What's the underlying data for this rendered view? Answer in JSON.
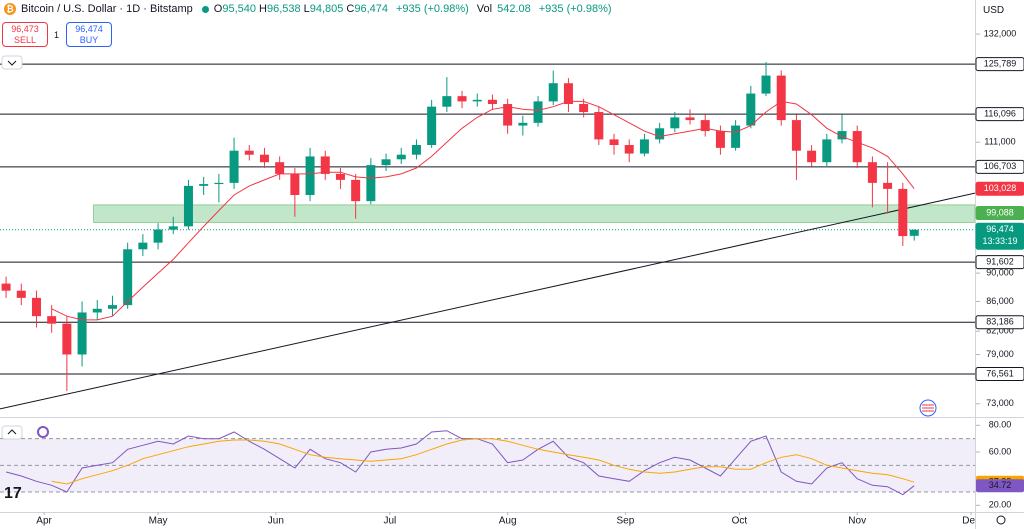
{
  "header": {
    "title": "Bitcoin / U.S. Dollar · 1D · Bitstamp",
    "ohlc": [
      {
        "key": "O",
        "value": "95,540"
      },
      {
        "key": "H",
        "value": "96,538"
      },
      {
        "key": "L",
        "value": "94,805"
      },
      {
        "key": "C",
        "value": "96,474"
      }
    ],
    "change": "+935 (+0.98%)",
    "vol_key": "Vol",
    "volume": "542.08",
    "vol_change": "+935 (+0.98%)"
  },
  "trade": {
    "sell_price": "96,473",
    "sell": "SELL",
    "spread": "1",
    "buy_price": "96,474",
    "buy": "BUY"
  },
  "currency": "USD",
  "chart_data": {
    "type": "candlestick",
    "log": true,
    "xlim": [
      -11.6,
      245
    ],
    "ylim": [
      71700,
      139400
    ],
    "xticks": [
      {
        "value": 0,
        "label": "Apr"
      },
      {
        "value": 30,
        "label": "May"
      },
      {
        "value": 61,
        "label": "Jun"
      },
      {
        "value": 91,
        "label": "Jul"
      },
      {
        "value": 122,
        "label": "Aug"
      },
      {
        "value": 153,
        "label": "Sep"
      },
      {
        "value": 183,
        "label": "Oct"
      },
      {
        "value": 214,
        "label": "Nov"
      },
      {
        "value": 244,
        "label": "Dec"
      }
    ],
    "yticks": [
      {
        "value": 132000,
        "label": "132,000"
      },
      {
        "value": 111000,
        "label": "111,000"
      },
      {
        "value": 90000,
        "label": "90,000"
      },
      {
        "value": 86000,
        "label": "86,000"
      },
      {
        "value": 82000,
        "label": "82,000"
      },
      {
        "value": 79000,
        "label": "79,000"
      },
      {
        "value": 73000,
        "label": "73,000"
      }
    ],
    "up_color": "#089981",
    "down_color": "#f23645",
    "candles": {
      "x": [
        -10,
        -6,
        -2,
        2,
        6,
        10,
        14,
        18,
        22,
        26,
        30,
        34,
        38,
        42,
        46,
        50,
        54,
        58,
        62,
        66,
        70,
        74,
        78,
        82,
        86,
        90,
        94,
        98,
        102,
        106,
        110,
        114,
        118,
        122,
        126,
        130,
        134,
        138,
        142,
        146,
        150,
        154,
        158,
        162,
        166,
        170,
        174,
        178,
        182,
        186,
        190,
        194,
        198,
        202,
        206,
        210,
        214,
        218,
        222,
        226,
        229
      ],
      "open": [
        88500,
        87500,
        86500,
        84000,
        83000,
        79000,
        84500,
        85000,
        85500,
        93500,
        94500,
        96500,
        97000,
        103500,
        103800,
        104000,
        109500,
        108800,
        107500,
        105500,
        102000,
        108500,
        105500,
        104500,
        101000,
        107000,
        108000,
        108800,
        110500,
        117500,
        119500,
        118500,
        118800,
        118000,
        114000,
        114500,
        118500,
        122000,
        118000,
        116500,
        111500,
        110500,
        109000,
        111500,
        113500,
        115500,
        115000,
        113000,
        110000,
        114000,
        120000,
        123500,
        115000,
        109500,
        107500,
        111500,
        113000,
        107500,
        104000,
        103000,
        95540
      ],
      "high": [
        89500,
        88500,
        87500,
        85500,
        84000,
        86000,
        86200,
        86800,
        94500,
        95800,
        97500,
        98500,
        104500,
        105000,
        105500,
        111800,
        110500,
        110000,
        108500,
        106500,
        110000,
        109500,
        106500,
        105500,
        108200,
        109000,
        110000,
        111500,
        118800,
        123200,
        120500,
        120000,
        119800,
        119000,
        115800,
        119500,
        124500,
        123000,
        119000,
        117500,
        112500,
        111500,
        112500,
        114500,
        116500,
        117000,
        116000,
        114000,
        115000,
        121500,
        126200,
        124500,
        116000,
        110500,
        112500,
        116000,
        114000,
        108500,
        107500,
        104000,
        96538
      ],
      "low": [
        86500,
        85500,
        82500,
        81800,
        74500,
        77500,
        83500,
        84000,
        85000,
        92500,
        93500,
        95800,
        96500,
        102000,
        100800,
        103000,
        107800,
        106500,
        104500,
        98500,
        101000,
        104500,
        103000,
        98200,
        100500,
        106000,
        107200,
        108000,
        110000,
        116500,
        117200,
        117500,
        117000,
        112500,
        112200,
        113800,
        117800,
        116500,
        115500,
        110500,
        108800,
        107500,
        108500,
        110800,
        112800,
        114200,
        112000,
        108800,
        109500,
        113500,
        119500,
        114000,
        104500,
        106800,
        106600,
        110800,
        106500,
        100000,
        99000,
        94000,
        94805
      ],
      "close": [
        87500,
        86500,
        84000,
        83000,
        79000,
        84500,
        85000,
        85500,
        93500,
        94500,
        96500,
        97000,
        103500,
        103800,
        104000,
        109500,
        108800,
        107500,
        105500,
        102000,
        108500,
        105500,
        104500,
        101000,
        107000,
        108000,
        108800,
        110500,
        117500,
        119500,
        118500,
        118800,
        118000,
        114000,
        114500,
        118500,
        122000,
        118000,
        116500,
        111500,
        110500,
        109000,
        111500,
        113500,
        115500,
        115000,
        113000,
        110000,
        114000,
        120000,
        123500,
        115000,
        109500,
        107500,
        111500,
        113000,
        107500,
        104000,
        103000,
        95500,
        96474
      ]
    },
    "ma": {
      "color": "#f23645",
      "values": [
        null,
        null,
        null,
        85000,
        84000,
        83500,
        83500,
        84000,
        86000,
        88000,
        90000,
        92000,
        94500,
        97000,
        99500,
        102000,
        103500,
        104500,
        105500,
        105500,
        105500,
        105800,
        105800,
        105000,
        104800,
        105000,
        105500,
        106500,
        108500,
        111000,
        113500,
        115500,
        117000,
        117500,
        117000,
        116800,
        117500,
        118500,
        118500,
        117500,
        116000,
        114500,
        113000,
        112000,
        112500,
        113000,
        113500,
        113000,
        112800,
        114000,
        116500,
        118500,
        118000,
        116000,
        113500,
        112000,
        111000,
        110000,
        108500,
        105500,
        103028
      ]
    },
    "zone": {
      "color": "#8fd19e",
      "x": [
        13,
        245
      ],
      "y": [
        97600,
        100400
      ]
    },
    "trendline": {
      "color": "#131722",
      "x": [
        -11.6,
        245
      ],
      "y": [
        72400,
        102300
      ]
    },
    "badges": [
      {
        "value": 125789,
        "label": "125,789",
        "color": "#ffffff",
        "text_color": "#131722",
        "line": "solid"
      },
      {
        "value": 116096,
        "label": "116,096",
        "color": "#ffffff",
        "text_color": "#131722",
        "line": "solid"
      },
      {
        "value": 106703,
        "label": "106,703",
        "color": "#ffffff",
        "text_color": "#131722",
        "line": "solid"
      },
      {
        "value": 103028,
        "label": "103,028",
        "color": "#f23645",
        "text_color": "#ffffff"
      },
      {
        "value": 99088,
        "label": "99,088",
        "color": "#4caf50",
        "text_color": "#ffffff"
      },
      {
        "value": 96474,
        "label": "96,474",
        "sublabel": "13:33:19",
        "color": "#089981",
        "text_color": "#ffffff",
        "line": "dotted"
      },
      {
        "value": 91602,
        "label": "91,602",
        "color": "#ffffff",
        "text_color": "#131722",
        "line": "solid"
      },
      {
        "value": 83186,
        "label": "83,186",
        "color": "#ffffff",
        "text_color": "#131722",
        "line": "solid"
      },
      {
        "value": 76561,
        "label": "76,561",
        "color": "#ffffff",
        "text_color": "#131722",
        "line": "solid"
      }
    ],
    "rsi": {
      "ylim": [
        15,
        84
      ],
      "yticks": [
        {
          "value": 80,
          "label": "80.00"
        },
        {
          "value": 60,
          "label": "60.00"
        },
        {
          "value": 20,
          "label": "20.00"
        }
      ],
      "band": [
        30,
        70
      ],
      "mid": 50,
      "band_color": "#7e57c2",
      "series": [
        {
          "color": "#7e57c2",
          "values": [
            45,
            42,
            38,
            35,
            30,
            48,
            50,
            52,
            62,
            65,
            68,
            66,
            72,
            70,
            70,
            75,
            68,
            62,
            55,
            48,
            62,
            55,
            52,
            45,
            60,
            62,
            63,
            66,
            75,
            76,
            70,
            70,
            66,
            52,
            54,
            62,
            68,
            56,
            52,
            42,
            40,
            38,
            46,
            52,
            56,
            54,
            48,
            42,
            55,
            68,
            72,
            45,
            38,
            36,
            48,
            52,
            40,
            35,
            34,
            28,
            34.72
          ]
        },
        {
          "color": "#f7a600",
          "values": [
            null,
            null,
            null,
            38,
            36,
            40,
            43,
            46,
            50,
            55,
            58,
            61,
            64,
            66,
            68,
            69,
            69,
            68,
            66,
            62,
            58,
            56,
            55,
            54,
            53,
            54,
            55,
            58,
            62,
            66,
            69,
            70,
            70,
            68,
            65,
            62,
            60,
            58,
            56,
            54,
            50,
            47,
            45,
            44,
            45,
            47,
            49,
            49,
            47,
            47,
            52,
            56,
            58,
            55,
            50,
            48,
            46,
            44,
            43,
            40,
            37.32
          ]
        }
      ],
      "badges": [
        {
          "value": 37.32,
          "color": "#f7a600"
        },
        {
          "value": 34.72,
          "color": "#7e57c2"
        }
      ]
    }
  }
}
